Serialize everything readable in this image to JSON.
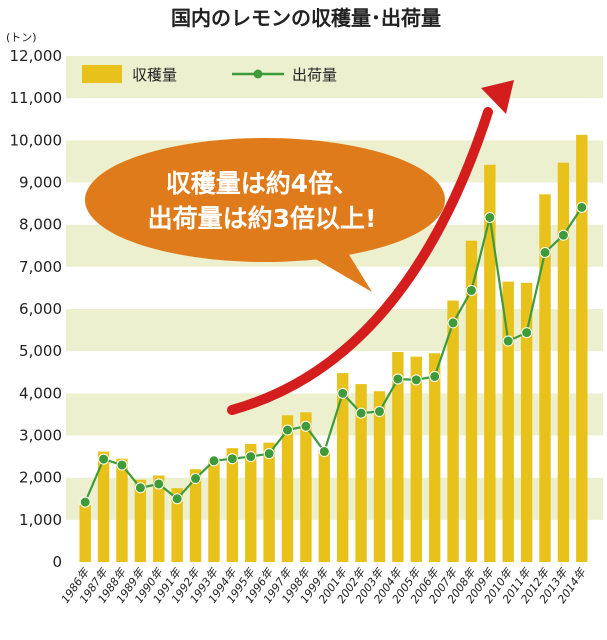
{
  "chart_data": {
    "type": "bar",
    "title": "国内のレモンの収穫量･出荷量",
    "unit_label": "(トン)",
    "categories": [
      "1986年",
      "1987年",
      "1988年",
      "1989年",
      "1990年",
      "1991年",
      "1992年",
      "1993年",
      "1994年",
      "1995年",
      "1996年",
      "1997年",
      "1998年",
      "1999年",
      "2001年",
      "2002年",
      "2003年",
      "2004年",
      "2005年",
      "2006年",
      "2007年",
      "2008年",
      "2009年",
      "2010年",
      "2011年",
      "2012年",
      "2013年",
      "2014年"
    ],
    "ylim": [
      0,
      12000
    ],
    "yticks": [
      "0",
      "1,000",
      "2,000",
      "3,000",
      "4,000",
      "5,000",
      "6,000",
      "7,000",
      "8,000",
      "9,000",
      "10,000",
      "11,000",
      "12,000"
    ],
    "grid": "alternating horizontal bands",
    "legend_position": "top-left",
    "series": [
      {
        "name": "収穫量",
        "kind": "bar",
        "color": "#e8c21a",
        "values": [
          1350,
          2620,
          2450,
          1950,
          2050,
          1750,
          2200,
          2450,
          2700,
          2800,
          2830,
          3480,
          3550,
          2650,
          4480,
          4220,
          4050,
          4980,
          4870,
          4950,
          6200,
          7620,
          9420,
          6650,
          6620,
          8720,
          9470,
          10130
        ]
      },
      {
        "name": "出荷量",
        "kind": "line",
        "color": "#3f9b3a",
        "values": [
          1420,
          2440,
          2300,
          1760,
          1850,
          1500,
          1980,
          2400,
          2450,
          2500,
          2570,
          3130,
          3220,
          2620,
          4000,
          3530,
          3570,
          4340,
          4320,
          4400,
          5670,
          6440,
          8170,
          5240,
          5440,
          7340,
          7750,
          8410
        ]
      }
    ],
    "annotations": {
      "callout": [
        "収穫量は約4倍、",
        "出荷量は約3倍以上!"
      ],
      "callout_color": "#e07b1c",
      "arrow_color": "#d41e1e"
    },
    "band_colors": [
      "#ecf0cf",
      "#ffffff"
    ]
  }
}
